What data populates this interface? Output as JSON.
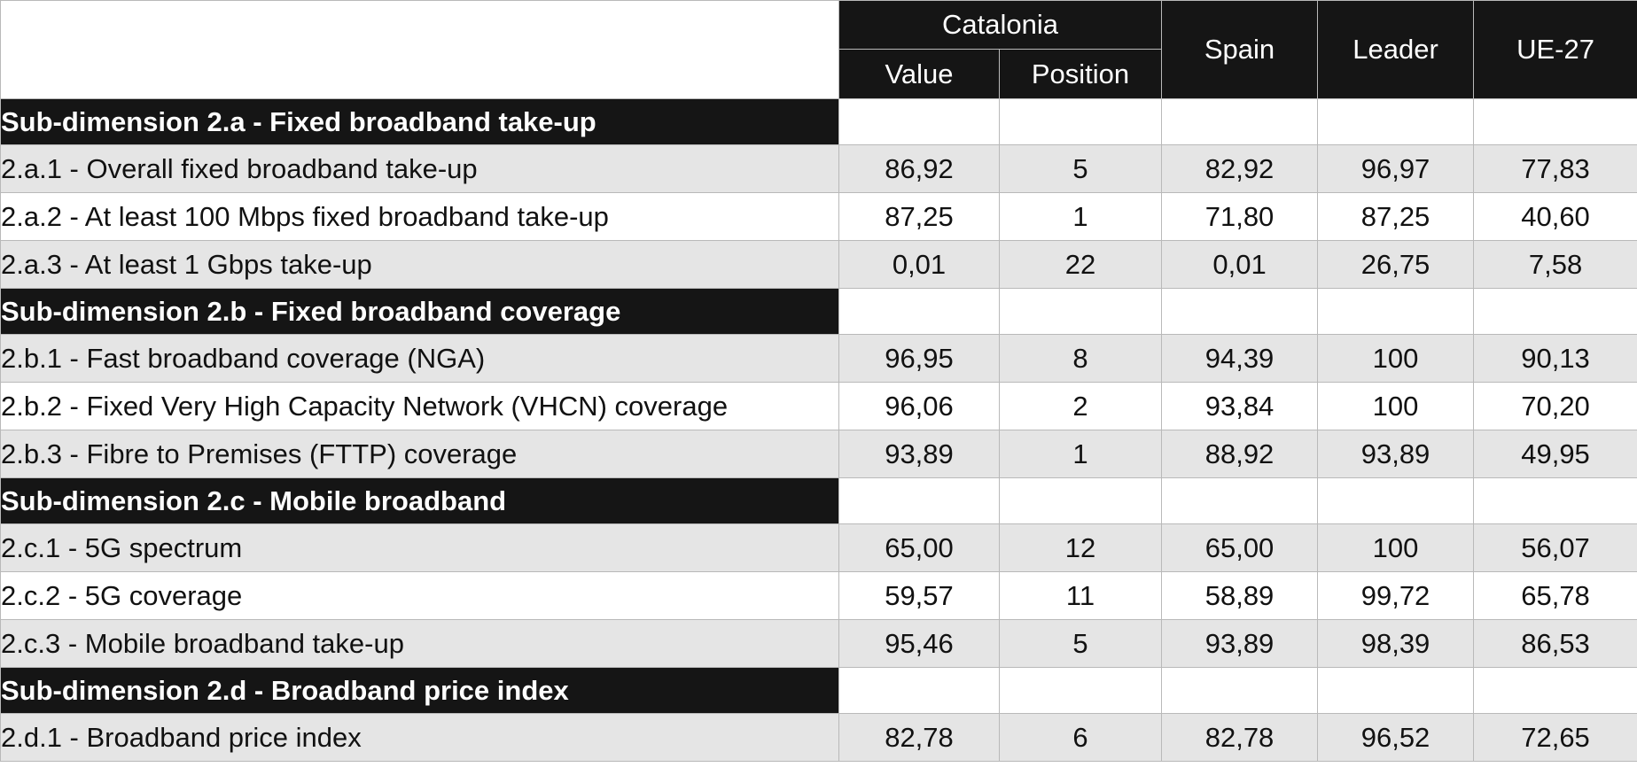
{
  "header": {
    "catalonia": "Catalonia",
    "value": "Value",
    "position": "Position",
    "spain": "Spain",
    "leader": "Leader",
    "eu": "UE-27"
  },
  "sections": [
    {
      "title": "Sub-dimension 2.a - Fixed broadband take-up",
      "rows": [
        {
          "label": "2.a.1 - Overall fixed broadband take-up",
          "value": "86,92",
          "position": "5",
          "spain": "82,92",
          "leader": "96,97",
          "eu": "77,83"
        },
        {
          "label": "2.a.2 - At least 100 Mbps fixed broadband take-up",
          "value": "87,25",
          "position": "1",
          "spain": "71,80",
          "leader": "87,25",
          "eu": "40,60"
        },
        {
          "label": "2.a.3 - At least 1 Gbps take-up",
          "value": "0,01",
          "position": "22",
          "spain": "0,01",
          "leader": "26,75",
          "eu": "7,58"
        }
      ]
    },
    {
      "title": "Sub-dimension 2.b - Fixed broadband coverage",
      "rows": [
        {
          "label": "2.b.1 - Fast broadband coverage (NGA)",
          "value": "96,95",
          "position": "8",
          "spain": "94,39",
          "leader": "100",
          "eu": "90,13"
        },
        {
          "label": "2.b.2 - Fixed Very High Capacity Network (VHCN) coverage",
          "value": "96,06",
          "position": "2",
          "spain": "93,84",
          "leader": "100",
          "eu": "70,20"
        },
        {
          "label": "2.b.3 - Fibre to Premises (FTTP) coverage",
          "value": "93,89",
          "position": "1",
          "spain": "88,92",
          "leader": "93,89",
          "eu": "49,95"
        }
      ]
    },
    {
      "title": "Sub-dimension 2.c - Mobile broadband",
      "rows": [
        {
          "label": "2.c.1 - 5G spectrum",
          "value": "65,00",
          "position": "12",
          "spain": "65,00",
          "leader": "100",
          "eu": "56,07"
        },
        {
          "label": "2.c.2 - 5G coverage",
          "value": "59,57",
          "position": "11",
          "spain": "58,89",
          "leader": "99,72",
          "eu": "65,78"
        },
        {
          "label": "2.c.3 - Mobile broadband take-up",
          "value": "95,46",
          "position": "5",
          "spain": "93,89",
          "leader": "98,39",
          "eu": "86,53"
        }
      ]
    },
    {
      "title": "Sub-dimension 2.d - Broadband price index",
      "rows": [
        {
          "label": "2.d.1 - Broadband price index",
          "value": "82,78",
          "position": "6",
          "spain": "82,78",
          "leader": "96,52",
          "eu": "72,65"
        }
      ]
    }
  ]
}
